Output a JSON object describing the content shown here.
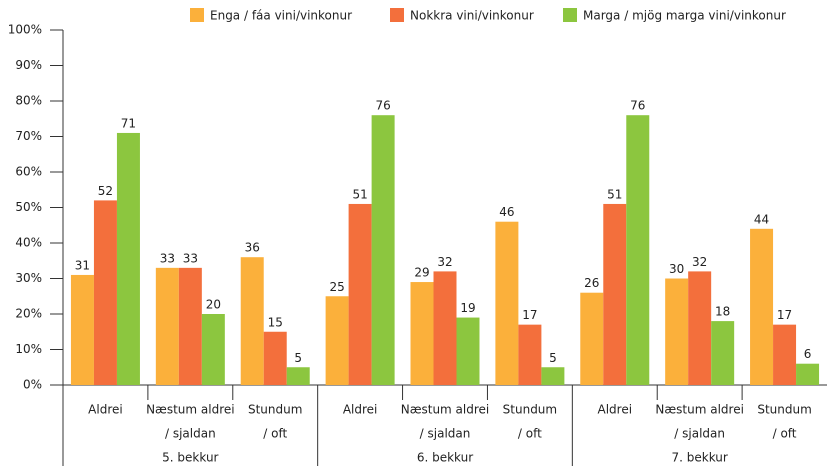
{
  "chart_data": {
    "type": "bar",
    "categories": [
      [
        "Aldrei"
      ],
      [
        "Næstum aldrei",
        "/ sjaldan"
      ],
      [
        "Stundum",
        "/ oft"
      ],
      [
        "Aldrei"
      ],
      [
        "Næstum aldrei",
        "/ sjaldan"
      ],
      [
        "Stundum",
        "/ oft"
      ],
      [
        "Aldrei"
      ],
      [
        "Næstum aldrei",
        "/ sjaldan"
      ],
      [
        "Stundum",
        "/ oft"
      ]
    ],
    "groups": [
      "5. bekkur",
      "6. bekkur",
      "7. bekkur"
    ],
    "series": [
      {
        "name": "Enga / fáa vini/vinkonur",
        "color": "#fbb03b",
        "values": [
          31,
          33,
          36,
          25,
          29,
          46,
          26,
          30,
          44
        ]
      },
      {
        "name": "Nokkra vini/vinkonur",
        "color": "#f36f3c",
        "values": [
          52,
          33,
          15,
          51,
          32,
          17,
          51,
          32,
          17
        ]
      },
      {
        "name": "Marga / mjög marga vini/vinkonur",
        "color": "#8cc63f",
        "values": [
          71,
          20,
          5,
          76,
          19,
          5,
          76,
          18,
          6
        ]
      }
    ],
    "ylim": [
      0,
      100
    ],
    "yticks": [
      {
        "value": 0,
        "label": "0%"
      },
      {
        "value": 10,
        "label": "10%"
      },
      {
        "value": 20,
        "label": "20%"
      },
      {
        "value": 30,
        "label": "30%"
      },
      {
        "value": 40,
        "label": "40%"
      },
      {
        "value": 50,
        "label": "50%"
      },
      {
        "value": 60,
        "label": "60%"
      },
      {
        "value": 70,
        "label": "70%"
      },
      {
        "value": 80,
        "label": "80%"
      },
      {
        "value": 90,
        "label": "90%"
      },
      {
        "value": 100,
        "label": "100%"
      }
    ],
    "legend": "top"
  }
}
